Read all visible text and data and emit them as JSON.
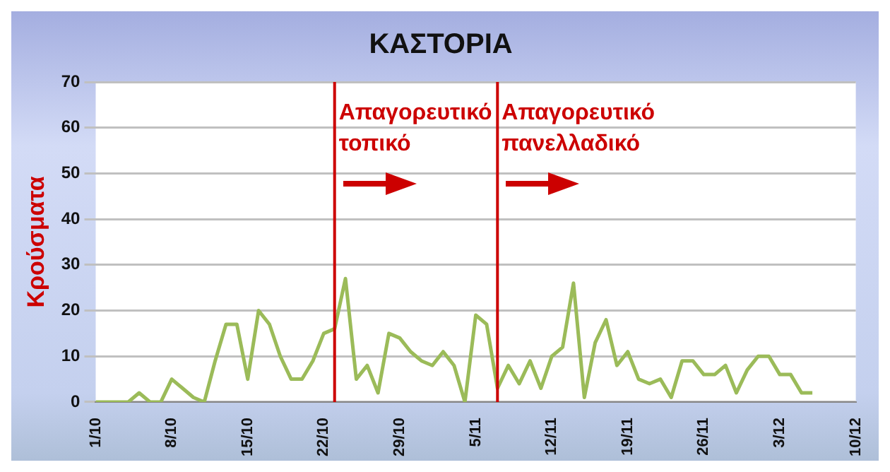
{
  "chart_data": {
    "type": "line",
    "title": "ΚΑΣΤΟΡΙΑ",
    "ylabel": "Κρούσματα",
    "x": [
      "--10-01",
      "--10-02",
      "--10-03",
      "--10-04",
      "--10-05",
      "--10-06",
      "--10-07",
      "--10-08",
      "--10-09",
      "--10-10",
      "--10-11",
      "--10-12",
      "--10-13",
      "--10-14",
      "--10-15",
      "--10-16",
      "--10-17",
      "--10-18",
      "--10-19",
      "--10-20",
      "--10-21",
      "--10-22",
      "--10-23",
      "--10-24",
      "--10-25",
      "--10-26",
      "--10-27",
      "--10-28",
      "--10-29",
      "--10-30",
      "--10-31",
      "--11-01",
      "--11-02",
      "--11-03",
      "--11-04",
      "--11-05",
      "--11-06",
      "--11-07",
      "--11-08",
      "--11-09",
      "--11-10",
      "--11-11",
      "--11-12",
      "--11-13",
      "--11-14",
      "--11-15",
      "--11-16",
      "--11-17",
      "--11-18",
      "--11-19",
      "--11-20",
      "--11-21",
      "--11-22",
      "--11-23",
      "--11-24",
      "--11-25",
      "--11-26",
      "--11-27",
      "--11-28",
      "--11-29",
      "--11-30",
      "--12-01",
      "--12-02",
      "--12-03",
      "--12-04",
      "--12-05",
      "--12-06"
    ],
    "series": [
      {
        "color": "#9bbb59",
        "values": [
          0,
          0,
          0,
          0,
          2,
          0,
          0,
          5,
          3,
          1,
          0,
          9,
          17,
          17,
          5,
          20,
          17,
          10,
          5,
          5,
          9,
          15,
          16,
          27,
          5,
          8,
          2,
          15,
          14,
          11,
          9,
          8,
          11,
          8,
          0,
          19,
          17,
          3,
          8,
          4,
          9,
          3,
          10,
          12,
          26,
          1,
          13,
          18,
          8,
          11,
          5,
          4,
          5,
          1,
          9,
          9,
          6,
          6,
          8,
          2,
          7,
          10,
          10,
          6,
          6,
          2,
          2
        ]
      }
    ],
    "xlim": [
      "--10-01",
      "--12-10"
    ],
    "xticks": [
      {
        "value": "--10-01",
        "label": "1/10"
      },
      {
        "value": "--10-08",
        "label": "8/10"
      },
      {
        "value": "--10-15",
        "label": "15/10"
      },
      {
        "value": "--10-22",
        "label": "22/10"
      },
      {
        "value": "--10-29",
        "label": "29/10"
      },
      {
        "value": "--11-05",
        "label": "5/11"
      },
      {
        "value": "--11-12",
        "label": "12/11"
      },
      {
        "value": "--11-19",
        "label": "19/11"
      },
      {
        "value": "--11-26",
        "label": "26/11"
      },
      {
        "value": "--12-03",
        "label": "3/12"
      },
      {
        "value": "--12-10",
        "label": "10/12"
      }
    ],
    "ylim": [
      0,
      70
    ],
    "yticks": [
      0,
      10,
      20,
      30,
      40,
      50,
      60,
      70
    ],
    "grid": "y",
    "marker": "none",
    "line_style": "solid",
    "legend": false,
    "ref_lines": [
      {
        "axis": "x",
        "value": "--10-23",
        "label": "Απαγορευτικό τοπικό",
        "color": "#cc0000"
      },
      {
        "axis": "x",
        "value": "--11-07",
        "label": "Απαγορευτικό πανελλαδικό",
        "color": "#cc0000"
      }
    ]
  }
}
